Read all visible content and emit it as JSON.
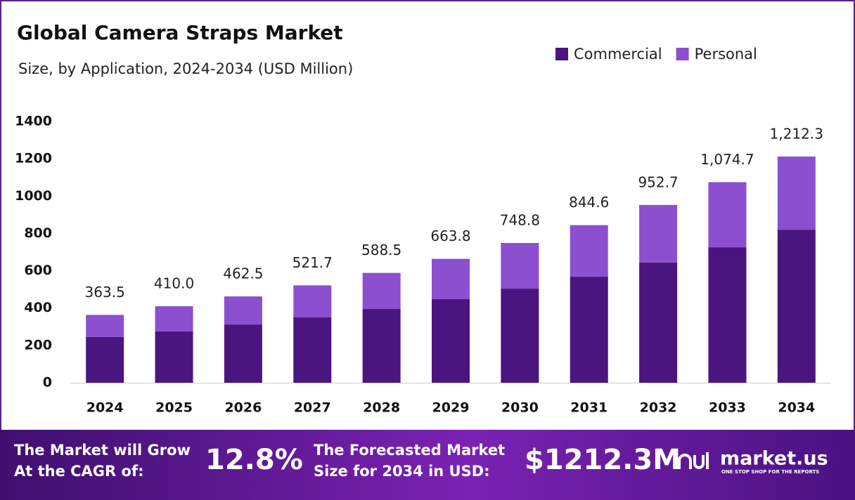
{
  "chart_data": {
    "type": "stacked-bar",
    "title": "Global Camera Straps Market",
    "subtitle": "Size, by Application, 2024-2034 (USD Million)",
    "categories": [
      "2024",
      "2025",
      "2026",
      "2027",
      "2028",
      "2029",
      "2030",
      "2031",
      "2032",
      "2033",
      "2034"
    ],
    "series": [
      {
        "name": "Commercial",
        "color": "#4b1580",
        "values": [
          245,
          275,
          312,
          350,
          395,
          448,
          504,
          568,
          644,
          726,
          820
        ]
      },
      {
        "name": "Personal",
        "color": "#8b4fcf",
        "values": [
          118.5,
          135,
          150.5,
          171.7,
          193.5,
          215.8,
          244.8,
          276.6,
          308.7,
          348.7,
          392.3
        ]
      }
    ],
    "totals": [
      363.5,
      410.0,
      462.5,
      521.7,
      588.5,
      663.8,
      748.8,
      844.6,
      952.7,
      1074.7,
      1212.3
    ],
    "total_labels": [
      "363.5",
      "410.0",
      "462.5",
      "521.7",
      "588.5",
      "663.8",
      "748.8",
      "844.6",
      "952.7",
      "1,074.7",
      "1,212.3"
    ],
    "ylim": [
      0,
      1400
    ],
    "yticks": [
      0,
      200,
      400,
      600,
      800,
      1000,
      1200,
      1400
    ],
    "grid": false,
    "legend": "top-right"
  },
  "footer": {
    "cagr_text_1": "The Market will Grow",
    "cagr_text_2": "At the CAGR of:",
    "cagr_value": "12.8%",
    "forecast_text_1": "The Forecasted Market",
    "forecast_text_2": "Size for 2034 in USD:",
    "forecast_value": "$1212.3M",
    "brand": "market.us",
    "tagline": "ONE STOP SHOP FOR THE REPORTS"
  }
}
